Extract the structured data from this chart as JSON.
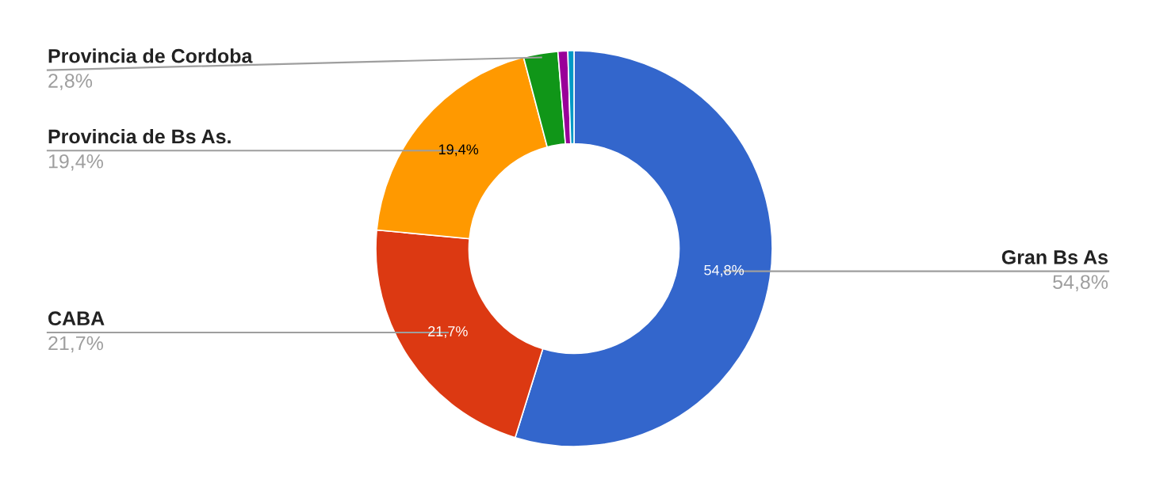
{
  "chart_data": {
    "type": "donut",
    "categories": [
      "Gran Bs As",
      "CABA",
      "Provincia de Bs As.",
      "Provincia de Cordoba",
      null,
      null
    ],
    "values": [
      54.8,
      21.7,
      19.4,
      2.8,
      0.8,
      0.5
    ],
    "value_labels": [
      "54,8%",
      "21,7%",
      "19,4%",
      "2,8%",
      null,
      null
    ],
    "colors": [
      "#3366cc",
      "#dc3912",
      "#ff9900",
      "#109618",
      "#990099",
      "#0099c6"
    ]
  }
}
